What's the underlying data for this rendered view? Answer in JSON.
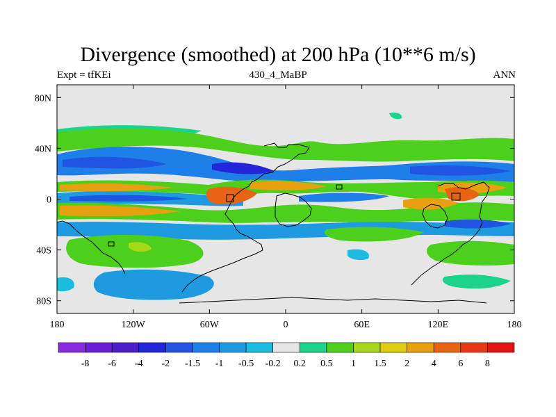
{
  "title": "Divergence (smoothed) at 200 hPa (10**6 m/s)",
  "left_label": "Expt = tfKEi",
  "center_label": "430_4_MaBP",
  "right_label": "ANN",
  "chart_data": {
    "type": "heatmap",
    "x_ticks": [
      "180",
      "120W",
      "60W",
      "0",
      "60E",
      "120E",
      "180"
    ],
    "y_ticks": [
      "80N",
      "40N",
      "0",
      "40S",
      "80S"
    ],
    "colorbar": {
      "labels": [
        "-8",
        "-6",
        "-4",
        "-2",
        "-1.5",
        "-1",
        "-0.5",
        "-0.2",
        "0.2",
        "0.5",
        "1",
        "1.5",
        "2",
        "4",
        "6",
        "8"
      ],
      "colors": [
        "#8A2BE2",
        "#6A1FD6",
        "#4B1FC8",
        "#2424D8",
        "#1F55E0",
        "#1F7FE8",
        "#1E9BE0",
        "#1BBCE0",
        "#E6E6E6",
        "#1BD48A",
        "#4CD01C",
        "#A8D81A",
        "#DDCC10",
        "#E6A010",
        "#E66414",
        "#E63A14",
        "#E31414"
      ]
    }
  }
}
